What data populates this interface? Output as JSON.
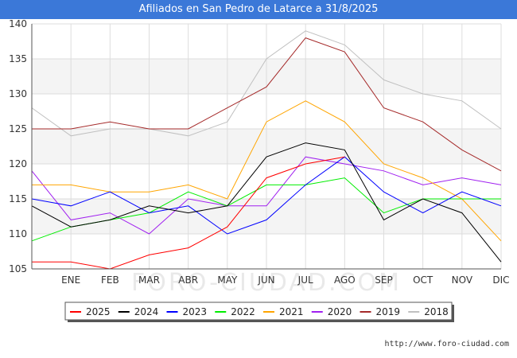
{
  "chart_data": {
    "type": "line",
    "title": "Afiliados en San Pedro de Latarce a 31/8/2025",
    "xlabel": "",
    "ylabel": "",
    "ylim": [
      105,
      140
    ],
    "yticks": [
      105,
      110,
      115,
      120,
      125,
      130,
      135,
      140
    ],
    "x_labels": [
      "",
      "ENE",
      "FEB",
      "MAR",
      "ABR",
      "MAY",
      "JUN",
      "JUL",
      "AGO",
      "SEP",
      "OCT",
      "NOV",
      "DIC"
    ],
    "grid": true,
    "watermark": "FORO-CIUDAD.COM",
    "source": "http://www.foro-ciudad.com",
    "series": [
      {
        "name": "2025",
        "color": "#ff0000",
        "values": [
          106,
          106,
          105,
          107,
          108,
          111,
          118,
          120,
          121,
          null,
          null,
          null,
          null
        ]
      },
      {
        "name": "2024",
        "color": "#000000",
        "values": [
          114,
          111,
          112,
          114,
          113,
          114,
          121,
          123,
          122,
          112,
          115,
          113,
          106
        ]
      },
      {
        "name": "2023",
        "color": "#0000ff",
        "values": [
          115,
          114,
          116,
          113,
          114,
          110,
          112,
          117,
          121,
          116,
          113,
          116,
          114
        ]
      },
      {
        "name": "2022",
        "color": "#00ee00",
        "values": [
          109,
          111,
          112,
          113,
          116,
          114,
          117,
          117,
          118,
          113,
          115,
          115,
          115
        ]
      },
      {
        "name": "2021",
        "color": "#ffa500",
        "values": [
          117,
          117,
          116,
          116,
          117,
          115,
          126,
          129,
          126,
          120,
          118,
          115,
          109
        ]
      },
      {
        "name": "2020",
        "color": "#a020f0",
        "values": [
          119,
          112,
          113,
          110,
          115,
          114,
          114,
          121,
          120,
          119,
          117,
          118,
          117
        ]
      },
      {
        "name": "2019",
        "color": "#a52a2a",
        "values": [
          125,
          125,
          126,
          125,
          125,
          128,
          131,
          138,
          136,
          128,
          126,
          122,
          119
        ]
      },
      {
        "name": "2018",
        "color": "#c0c0c0",
        "values": [
          128,
          124,
          125,
          125,
          124,
          126,
          135,
          139,
          137,
          132,
          130,
          129,
          125
        ]
      }
    ]
  }
}
